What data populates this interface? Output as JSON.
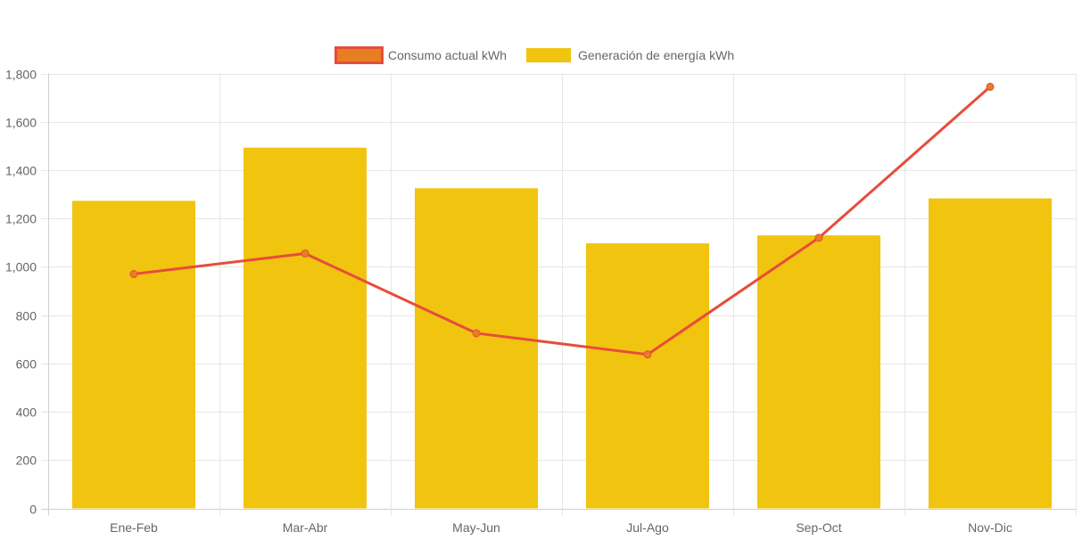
{
  "chart_data": {
    "type": "bar",
    "categories": [
      "Ene-Feb",
      "Mar-Abr",
      "May-Jun",
      "Jul-Ago",
      "Sep-Oct",
      "Nov-Dic"
    ],
    "series": [
      {
        "name": "Consumo actual kWh",
        "type": "line",
        "values": [
          970,
          1055,
          725,
          637,
          1120,
          1745
        ],
        "color": "#e74c3c",
        "legend_fill": "#e67e22"
      },
      {
        "name": "Generación de energía kWh",
        "type": "bar",
        "values": [
          1273,
          1493,
          1325,
          1097,
          1130,
          1283
        ],
        "color": "#f1c40f"
      }
    ],
    "title": "",
    "xlabel": "",
    "ylabel": "",
    "ylim": [
      0,
      1800
    ],
    "yticks": [
      0,
      200,
      400,
      600,
      800,
      1000,
      1200,
      1400,
      1600,
      1800
    ],
    "ytick_labels": [
      "0",
      "200",
      "400",
      "600",
      "800",
      "1,000",
      "1,200",
      "1,400",
      "1,600",
      "1,800"
    ],
    "grid": true,
    "legend_position": "top-center"
  }
}
